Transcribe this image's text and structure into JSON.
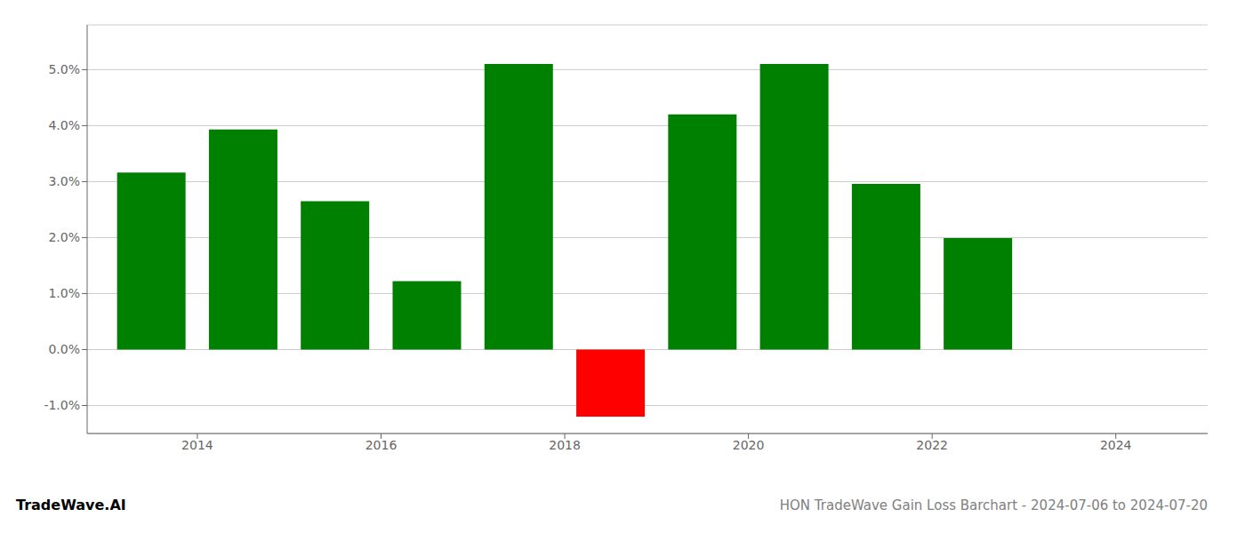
{
  "chart_data": {
    "type": "bar",
    "title": "HON TradeWave Gain Loss Barchart - 2024-07-06 to 2024-07-20",
    "annotations": [
      "TradeWave.AI"
    ],
    "x": [
      2013.5,
      2014.5,
      2015.5,
      2016.5,
      2017.5,
      2018.5,
      2019.5,
      2020.5,
      2021.5,
      2022.5
    ],
    "values": [
      0.0316,
      0.0393,
      0.0265,
      0.0122,
      0.051,
      -0.012,
      0.042,
      0.051,
      0.0296,
      0.0199
    ],
    "colors": [
      "#008000",
      "#008000",
      "#008000",
      "#008000",
      "#008000",
      "#ff0000",
      "#008000",
      "#008000",
      "#008000",
      "#008000"
    ],
    "xlim": [
      2012.8,
      2025.0
    ],
    "xticks": [
      2014,
      2016,
      2018,
      2020,
      2022,
      2024
    ],
    "ylim": [
      -0.015,
      0.058
    ],
    "yticks": [
      {
        "value": -0.01,
        "label": "-1.0%"
      },
      {
        "value": 0.0,
        "label": "0.0%"
      },
      {
        "value": 0.01,
        "label": "1.0%"
      },
      {
        "value": 0.02,
        "label": "2.0%"
      },
      {
        "value": 0.03,
        "label": "3.0%"
      },
      {
        "value": 0.04,
        "label": "4.0%"
      },
      {
        "value": 0.05,
        "label": "5.0%"
      }
    ],
    "grid": "y"
  }
}
